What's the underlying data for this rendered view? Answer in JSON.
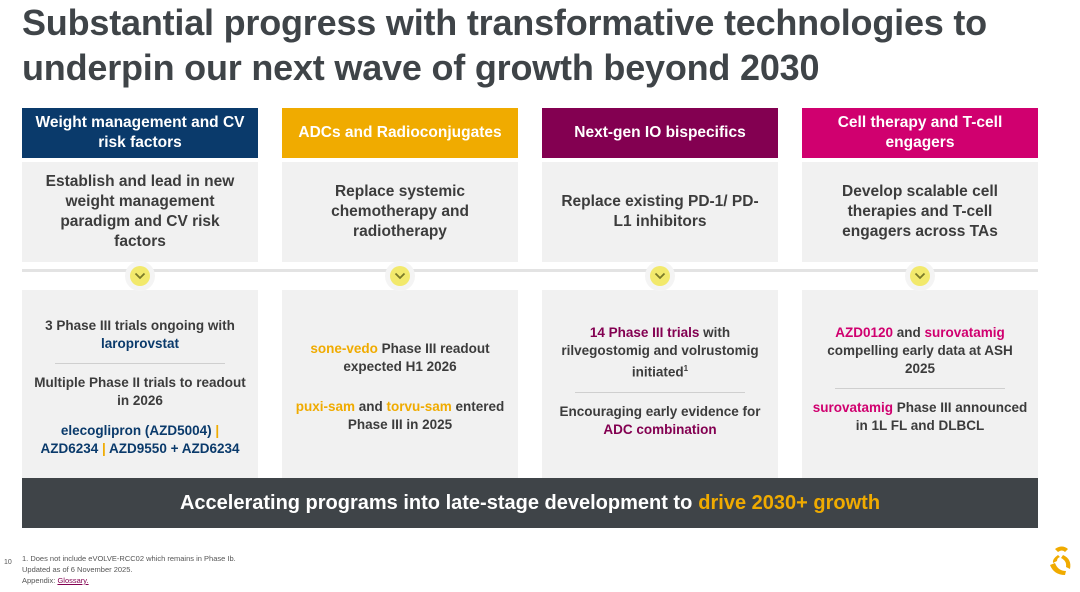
{
  "title": {
    "line1": "Substantial progress with transformative technologies to",
    "line2": "underpin our next wave of growth beyond 2030"
  },
  "columns": [
    {
      "header": "Weight management and CV risk factors",
      "goal": "Establish and lead in new weight management paradigm and CV risk factors",
      "b1_text": "3 Phase III trials ongoing with ",
      "b1_hl": "laroprovstat",
      "b2_text": "Multiple Phase II trials to readout in 2026",
      "b3_hl1": "elecoglipron (AZD5004)",
      "b3_sep1": " | ",
      "b3_hl2": "AZD6234",
      "b3_sep2": " | ",
      "b3_hl3": "AZD9550 + AZD6234"
    },
    {
      "header": "ADCs and Radioconjugates",
      "goal": "Replace systemic chemotherapy and radiotherapy",
      "b1_hl": "sone-vedo",
      "b1_text": " Phase III readout expected H1 2026",
      "b2_hl1": "puxi-sam",
      "b2_mid": " and ",
      "b2_hl2": "torvu-sam",
      "b2_text": " entered Phase III in 2025"
    },
    {
      "header": "Next-gen IO bispecifics",
      "goal": "Replace existing PD-1/ PD-L1 inhibitors",
      "b1_hl": "14 Phase III trials",
      "b1_text": " with rilvegostomig and volrustomig initiated",
      "b1_sup": "1",
      "b2_text": "Encouraging early evidence for ",
      "b2_hl": "ADC combination"
    },
    {
      "header": "Cell therapy and T-cell engagers",
      "goal": "Develop scalable cell therapies and T-cell engagers across TAs",
      "b1_hl1": "AZD0120",
      "b1_mid": " and ",
      "b1_hl2": "surovatamig",
      "b1_text": " compelling early data at ASH 2025",
      "b2_hl": "surovatamig",
      "b2_text": " Phase III announced in 1L FL and DLBCL"
    }
  ],
  "banner": {
    "text": "Accelerating programs into late-stage development to",
    "highlight": "drive 2030+ growth"
  },
  "footer": {
    "page_number": "10",
    "note1": "1. Does not include eVOLVE-RCC02 which remains in Phase Ib.",
    "note2": "Updated as of 6 November 2025.",
    "appendix_label": "Appendix: ",
    "appendix_link": "Glossary."
  },
  "colors": {
    "navy": "#0a3a6b",
    "gold": "#f0ab00",
    "mulberry": "#830051",
    "magenta": "#d0006f",
    "graphite": "#3f4448",
    "lime": "#f2e96c"
  }
}
